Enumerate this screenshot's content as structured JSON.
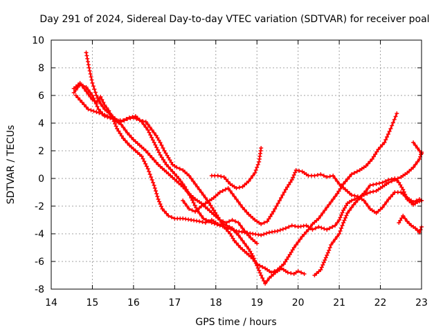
{
  "chart_data": {
    "type": "scatter",
    "title": "Day 291 of 2024, Sidereal Day-to-day VTEC variation (SDTVAR) for receiver poal",
    "xlabel": "GPS time / hours",
    "ylabel": "SDTVAR / TECUs",
    "xlim": [
      14,
      23
    ],
    "ylim": [
      -8,
      10
    ],
    "xticks": [
      14,
      15,
      16,
      17,
      18,
      19,
      20,
      21,
      22,
      23
    ],
    "yticks": [
      -8,
      -6,
      -4,
      -2,
      0,
      2,
      4,
      6,
      8,
      10
    ],
    "xtick_labels": [
      "14",
      "15",
      "16",
      "17",
      "18",
      "19",
      "20",
      "21",
      "22",
      "23"
    ],
    "ytick_labels": [
      "-8",
      "-6",
      "-4",
      "-2",
      "0",
      "2",
      "4",
      "6",
      "8",
      "10"
    ],
    "grid": true,
    "marker": "+",
    "color": "#ff0000",
    "series": [
      {
        "name": "track-1",
        "points": [
          [
            14.85,
            9.1
          ],
          [
            14.92,
            8.0
          ],
          [
            15.0,
            6.9
          ],
          [
            15.1,
            6.0
          ],
          [
            15.2,
            5.4
          ],
          [
            15.3,
            5.0
          ],
          [
            15.45,
            4.6
          ],
          [
            15.6,
            4.2
          ],
          [
            15.75,
            4.2
          ],
          [
            15.9,
            4.4
          ],
          [
            16.05,
            4.5
          ],
          [
            16.2,
            4.1
          ],
          [
            16.35,
            3.5
          ],
          [
            16.5,
            2.6
          ],
          [
            16.65,
            1.7
          ],
          [
            16.8,
            1.0
          ],
          [
            16.95,
            0.5
          ],
          [
            17.1,
            0.0
          ],
          [
            17.25,
            -0.6
          ],
          [
            17.4,
            -1.4
          ],
          [
            17.55,
            -2.3
          ],
          [
            17.7,
            -2.9
          ],
          [
            17.9,
            -3.2
          ],
          [
            18.1,
            -3.4
          ],
          [
            18.3,
            -3.6
          ],
          [
            18.5,
            -3.8
          ],
          [
            18.7,
            -3.9
          ],
          [
            18.9,
            -4.0
          ],
          [
            19.1,
            -4.1
          ],
          [
            19.3,
            -3.9
          ],
          [
            19.5,
            -3.8
          ],
          [
            19.7,
            -3.6
          ],
          [
            19.85,
            -3.4
          ],
          [
            20.0,
            -3.5
          ],
          [
            20.2,
            -3.4
          ],
          [
            20.35,
            -3.7
          ],
          [
            20.5,
            -3.5
          ],
          [
            20.7,
            -3.7
          ],
          [
            20.9,
            -3.4
          ],
          [
            21.0,
            -3.0
          ],
          [
            21.1,
            -2.3
          ],
          [
            21.2,
            -1.8
          ],
          [
            21.3,
            -1.6
          ],
          [
            21.45,
            -1.4
          ],
          [
            21.6,
            -1.2
          ],
          [
            21.75,
            -1.0
          ],
          [
            21.9,
            -0.9
          ],
          [
            22.05,
            -0.6
          ],
          [
            22.2,
            -0.3
          ],
          [
            22.35,
            -0.1
          ],
          [
            22.5,
            0.1
          ],
          [
            22.65,
            0.4
          ],
          [
            22.8,
            0.8
          ],
          [
            22.95,
            1.4
          ],
          [
            23.0,
            1.9
          ]
        ]
      },
      {
        "name": "track-2",
        "points": [
          [
            14.55,
            6.5
          ],
          [
            14.7,
            6.9
          ],
          [
            14.85,
            6.3
          ],
          [
            15.0,
            5.7
          ],
          [
            15.1,
            5.5
          ],
          [
            15.2,
            5.9
          ],
          [
            15.3,
            5.3
          ],
          [
            15.4,
            4.9
          ],
          [
            15.5,
            4.3
          ],
          [
            15.6,
            3.6
          ],
          [
            15.75,
            2.9
          ],
          [
            15.9,
            2.4
          ],
          [
            16.05,
            2.0
          ],
          [
            16.2,
            1.6
          ],
          [
            16.35,
            0.7
          ],
          [
            16.5,
            -0.5
          ],
          [
            16.6,
            -1.5
          ],
          [
            16.7,
            -2.2
          ],
          [
            16.85,
            -2.7
          ],
          [
            17.0,
            -2.9
          ],
          [
            17.2,
            -2.9
          ],
          [
            17.4,
            -3.0
          ],
          [
            17.6,
            -3.1
          ],
          [
            17.75,
            -3.2
          ],
          [
            17.9,
            -3.0
          ],
          [
            18.05,
            -3.3
          ],
          [
            18.2,
            -3.3
          ],
          [
            18.4,
            -3.6
          ],
          [
            18.55,
            -4.1
          ],
          [
            18.65,
            -4.5
          ],
          [
            18.8,
            -5.1
          ],
          [
            18.9,
            -5.6
          ],
          [
            19.0,
            -6.3
          ],
          [
            19.1,
            -7.0
          ],
          [
            19.2,
            -7.6
          ],
          [
            19.3,
            -7.2
          ],
          [
            19.45,
            -6.8
          ],
          [
            19.6,
            -6.5
          ],
          [
            19.75,
            -6.8
          ],
          [
            19.9,
            -6.9
          ],
          [
            20.0,
            -6.7
          ],
          [
            20.15,
            -6.9
          ]
        ]
      },
      {
        "name": "track-3",
        "points": [
          [
            14.6,
            6.0
          ],
          [
            14.75,
            5.5
          ],
          [
            14.9,
            5.0
          ],
          [
            15.1,
            4.8
          ],
          [
            15.3,
            4.6
          ],
          [
            15.5,
            4.3
          ],
          [
            15.7,
            3.9
          ],
          [
            15.85,
            3.3
          ],
          [
            16.0,
            2.8
          ],
          [
            16.15,
            2.4
          ],
          [
            16.3,
            2.0
          ],
          [
            16.45,
            1.5
          ],
          [
            16.6,
            1.0
          ],
          [
            16.75,
            0.6
          ],
          [
            16.9,
            0.2
          ],
          [
            17.05,
            -0.2
          ],
          [
            17.2,
            -0.6
          ],
          [
            17.35,
            -1.1
          ],
          [
            17.5,
            -1.5
          ],
          [
            17.65,
            -1.8
          ],
          [
            17.8,
            -2.2
          ],
          [
            17.95,
            -2.6
          ],
          [
            18.1,
            -3.0
          ],
          [
            18.2,
            -3.5
          ],
          [
            18.35,
            -4.0
          ],
          [
            18.45,
            -4.5
          ],
          [
            18.6,
            -5.0
          ],
          [
            18.75,
            -5.4
          ],
          [
            18.9,
            -5.8
          ],
          [
            19.0,
            -6.2
          ],
          [
            19.2,
            -6.5
          ],
          [
            19.35,
            -6.8
          ],
          [
            19.5,
            -6.6
          ],
          [
            19.65,
            -6.2
          ],
          [
            19.8,
            -5.5
          ],
          [
            19.9,
            -5.0
          ],
          [
            20.0,
            -4.6
          ],
          [
            20.1,
            -4.2
          ],
          [
            20.25,
            -3.7
          ],
          [
            20.35,
            -3.3
          ],
          [
            20.5,
            -2.9
          ],
          [
            20.65,
            -2.3
          ],
          [
            20.8,
            -1.7
          ],
          [
            20.95,
            -1.1
          ],
          [
            21.1,
            -0.4
          ],
          [
            21.3,
            0.3
          ],
          [
            21.5,
            0.6
          ],
          [
            21.65,
            0.9
          ],
          [
            21.8,
            1.4
          ],
          [
            21.95,
            2.1
          ],
          [
            22.1,
            2.6
          ],
          [
            22.25,
            3.6
          ],
          [
            22.4,
            4.7
          ]
        ]
      },
      {
        "name": "track-4",
        "points": [
          [
            14.55,
            6.2
          ],
          [
            14.7,
            6.8
          ],
          [
            14.85,
            6.6
          ],
          [
            15.0,
            6.0
          ],
          [
            15.15,
            5.0
          ],
          [
            15.3,
            4.5
          ],
          [
            15.5,
            4.3
          ],
          [
            15.7,
            4.1
          ],
          [
            15.85,
            4.3
          ],
          [
            16.0,
            4.4
          ],
          [
            16.15,
            4.2
          ],
          [
            16.3,
            4.1
          ],
          [
            16.45,
            3.5
          ],
          [
            16.55,
            3.1
          ],
          [
            16.65,
            2.6
          ],
          [
            16.75,
            2.0
          ],
          [
            16.85,
            1.5
          ],
          [
            16.95,
            1.0
          ],
          [
            17.05,
            0.8
          ],
          [
            17.2,
            0.6
          ],
          [
            17.35,
            0.2
          ],
          [
            17.5,
            -0.4
          ],
          [
            17.65,
            -1.0
          ],
          [
            17.8,
            -1.6
          ],
          [
            17.95,
            -2.3
          ],
          [
            18.1,
            -3.0
          ],
          [
            18.25,
            -3.2
          ],
          [
            18.4,
            -3.0
          ],
          [
            18.55,
            -3.2
          ],
          [
            18.7,
            -3.8
          ],
          [
            18.85,
            -4.3
          ],
          [
            19.0,
            -4.7
          ]
        ]
      },
      {
        "name": "track-5",
        "points": [
          [
            17.9,
            0.2
          ],
          [
            18.05,
            0.2
          ],
          [
            18.2,
            0.1
          ],
          [
            18.35,
            -0.4
          ],
          [
            18.5,
            -0.7
          ],
          [
            18.65,
            -0.6
          ],
          [
            18.8,
            -0.2
          ],
          [
            18.95,
            0.4
          ],
          [
            19.05,
            1.2
          ],
          [
            19.1,
            2.2
          ]
        ]
      },
      {
        "name": "track-6",
        "points": [
          [
            17.2,
            -1.6
          ],
          [
            17.35,
            -2.2
          ],
          [
            17.5,
            -2.4
          ],
          [
            17.65,
            -2.0
          ],
          [
            17.8,
            -1.7
          ],
          [
            17.95,
            -1.4
          ],
          [
            18.1,
            -1.0
          ],
          [
            18.3,
            -0.7
          ],
          [
            18.5,
            -1.5
          ],
          [
            18.65,
            -2.1
          ],
          [
            18.8,
            -2.6
          ],
          [
            18.95,
            -3.0
          ],
          [
            19.1,
            -3.3
          ],
          [
            19.25,
            -3.1
          ],
          [
            19.4,
            -2.4
          ],
          [
            19.55,
            -1.6
          ],
          [
            19.7,
            -0.8
          ],
          [
            19.85,
            -0.1
          ],
          [
            19.95,
            0.6
          ],
          [
            20.1,
            0.5
          ],
          [
            20.25,
            0.2
          ],
          [
            20.4,
            0.2
          ],
          [
            20.55,
            0.3
          ],
          [
            20.7,
            0.1
          ],
          [
            20.85,
            0.2
          ],
          [
            21.0,
            -0.4
          ],
          [
            21.15,
            -0.8
          ],
          [
            21.3,
            -1.2
          ],
          [
            21.45,
            -1.3
          ],
          [
            21.6,
            -1.6
          ],
          [
            21.75,
            -2.2
          ],
          [
            21.9,
            -2.5
          ],
          [
            22.05,
            -2.1
          ],
          [
            22.2,
            -1.5
          ],
          [
            22.35,
            -1.0
          ],
          [
            22.5,
            -1.0
          ],
          [
            22.65,
            -1.4
          ],
          [
            22.8,
            -1.7
          ],
          [
            22.95,
            -1.5
          ],
          [
            23.0,
            -1.6
          ]
        ]
      },
      {
        "name": "track-7",
        "points": [
          [
            20.4,
            -7.0
          ],
          [
            20.55,
            -6.6
          ],
          [
            20.65,
            -5.9
          ],
          [
            20.75,
            -5.2
          ],
          [
            20.8,
            -4.8
          ],
          [
            20.9,
            -4.4
          ],
          [
            21.0,
            -4.0
          ],
          [
            21.1,
            -3.2
          ],
          [
            21.2,
            -2.5
          ],
          [
            21.35,
            -1.9
          ],
          [
            21.5,
            -1.4
          ],
          [
            21.65,
            -0.9
          ],
          [
            21.75,
            -0.5
          ],
          [
            21.9,
            -0.4
          ],
          [
            22.05,
            -0.3
          ],
          [
            22.2,
            -0.1
          ],
          [
            22.35,
            0.0
          ],
          [
            22.45,
            -0.3
          ],
          [
            22.55,
            -0.8
          ],
          [
            22.65,
            -1.5
          ],
          [
            22.8,
            -1.9
          ],
          [
            22.9,
            -1.7
          ],
          [
            23.0,
            -1.6
          ]
        ]
      },
      {
        "name": "track-8",
        "points": [
          [
            22.45,
            -3.2
          ],
          [
            22.55,
            -2.7
          ],
          [
            22.65,
            -3.1
          ],
          [
            22.75,
            -3.4
          ],
          [
            22.85,
            -3.6
          ],
          [
            22.95,
            -3.9
          ],
          [
            23.0,
            -3.5
          ]
        ]
      },
      {
        "name": "track-9",
        "points": [
          [
            22.8,
            2.6
          ],
          [
            22.9,
            2.2
          ],
          [
            23.0,
            1.8
          ]
        ]
      }
    ]
  }
}
